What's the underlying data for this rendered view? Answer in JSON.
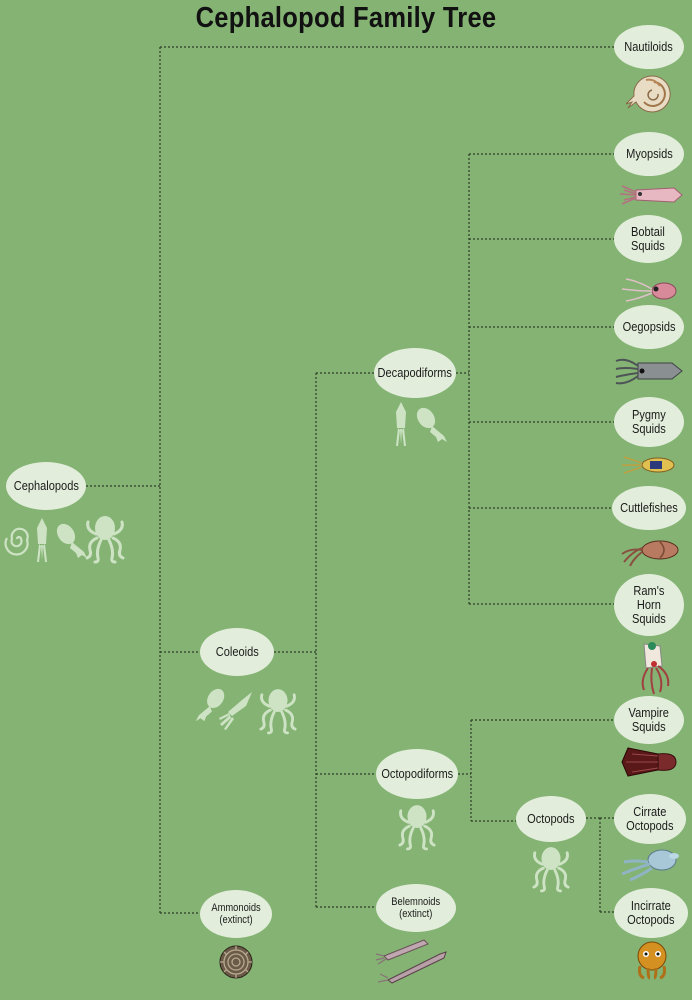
{
  "title": "Cephalopod Family Tree",
  "nodes": {
    "cephalopods": "Cephalopods",
    "coleoids": "Coleoids",
    "ammonoids": "Ammonoids\n(extinct)",
    "decapodiforms": "Decapodiforms",
    "octopodiforms": "Octopodiforms",
    "belemnoids": "Belemnoids\n(extinct)",
    "octopods": "Octopods",
    "nautiloids": "Nautiloids",
    "myopsids": "Myopsids",
    "bobtail_squids": "Bobtail\nSquids",
    "oegopsids": "Oegopsids",
    "pygmy_squids": "Pygmy\nSquids",
    "cuttlefishes": "Cuttlefishes",
    "rams_horn_squids": "Ram's\nHorn\nSquids",
    "vampire_squids": "Vampire\nSquids",
    "cirrate_octopods": "Cirrate\nOctopods",
    "incirrate_octopods": "Incirrate\nOctopods"
  },
  "icons": {
    "silhouette_color": "#cde3c4",
    "cephalopods": [
      "ammonite-icon",
      "squid-icon",
      "cuttlefish-icon",
      "octopus-icon"
    ],
    "coleoids": [
      "cuttlefish-icon",
      "squid-icon",
      "octopus-icon"
    ],
    "decapodiforms": [
      "squid-icon",
      "cuttlefish-icon"
    ],
    "octopodiforms": [
      "octopus-icon"
    ],
    "octopods": [
      "octopus-icon"
    ],
    "leaf_illustrations": [
      "nautilus-illustration",
      "myopsid-illustration",
      "bobtail-squid-illustration",
      "oegopsid-illustration",
      "pygmy-squid-illustration",
      "cuttlefish-illustration",
      "rams-horn-squid-illustration",
      "vampire-squid-illustration",
      "cirrate-octopod-illustration",
      "incirrate-octopod-illustration",
      "ammonite-fossil-illustration",
      "belemnite-illustration"
    ]
  }
}
